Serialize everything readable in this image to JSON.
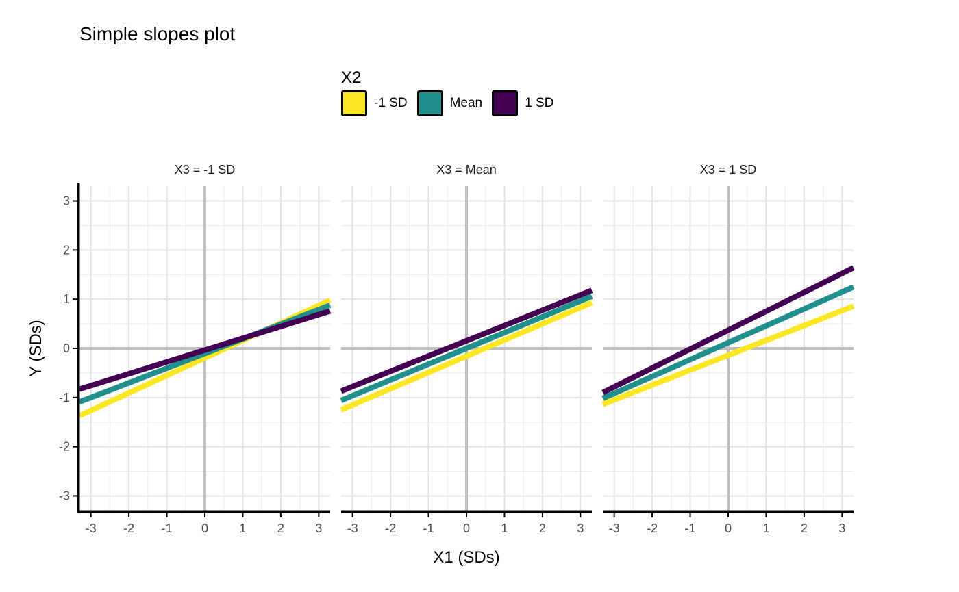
{
  "chart_data": {
    "type": "line",
    "title": "Simple slopes plot",
    "xlabel": "X1 (SDs)",
    "ylabel": "Y (SDs)",
    "xlim": [
      -3.3,
      3.3
    ],
    "ylim": [
      -3.3,
      3.3
    ],
    "xticks": [
      "-3",
      "-2",
      "-1",
      "0",
      "1",
      "2",
      "3"
    ],
    "yticks": [
      "-3",
      "-2",
      "-1",
      "0",
      "1",
      "2",
      "3"
    ],
    "legend": {
      "title": "X2",
      "placement": "top"
    },
    "grid": true,
    "series_styles": [
      {
        "name": "-1 SD",
        "color": "#FDE725"
      },
      {
        "name": "Mean",
        "color": "#21908C"
      },
      {
        "name": "1 SD",
        "color": "#440154"
      }
    ],
    "panels": [
      {
        "label": "X3 = -1 SD",
        "series": [
          {
            "name": "-1 SD",
            "x": [
              -3.3,
              3.3
            ],
            "y": [
              -1.37,
              0.98
            ]
          },
          {
            "name": "Mean",
            "x": [
              -3.3,
              3.3
            ],
            "y": [
              -1.09,
              0.88
            ]
          },
          {
            "name": "1 SD",
            "x": [
              -3.3,
              3.3
            ],
            "y": [
              -0.83,
              0.76
            ]
          }
        ]
      },
      {
        "label": "X3 = Mean",
        "series": [
          {
            "name": "-1 SD",
            "x": [
              -3.3,
              3.3
            ],
            "y": [
              -1.25,
              0.93
            ]
          },
          {
            "name": "Mean",
            "x": [
              -3.3,
              3.3
            ],
            "y": [
              -1.06,
              1.06
            ]
          },
          {
            "name": "1 SD",
            "x": [
              -3.3,
              3.3
            ],
            "y": [
              -0.87,
              1.18
            ]
          }
        ]
      },
      {
        "label": "X3 = 1 SD",
        "series": [
          {
            "name": "-1 SD",
            "x": [
              -3.3,
              3.3
            ],
            "y": [
              -1.14,
              0.86
            ]
          },
          {
            "name": "Mean",
            "x": [
              -3.3,
              3.3
            ],
            "y": [
              -1.02,
              1.25
            ]
          },
          {
            "name": "1 SD",
            "x": [
              -3.3,
              3.3
            ],
            "y": [
              -0.9,
              1.64
            ]
          }
        ]
      }
    ]
  }
}
